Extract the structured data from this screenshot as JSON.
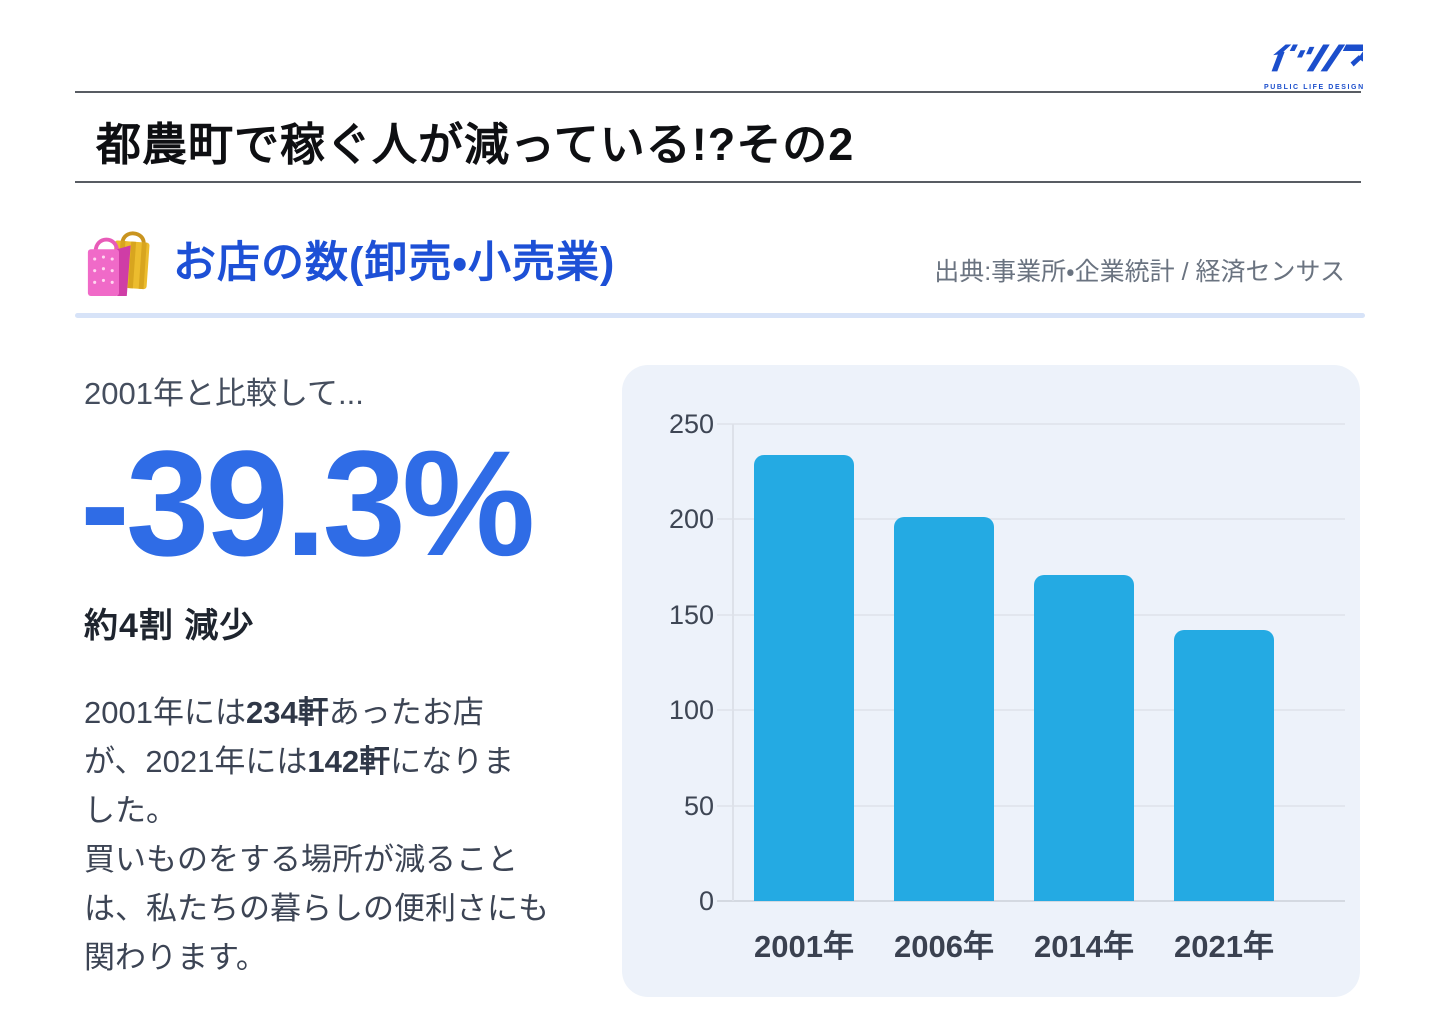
{
  "logo": {
    "name": "イツノマ",
    "tagline": "PUBLIC LIFE DESIGN"
  },
  "header": {
    "title": "都農町で稼ぐ人が減っている!?その2"
  },
  "section": {
    "icon": "shopping-bags",
    "title": "お店の数(卸売・小売業)",
    "source": "出典:事業所・企業統計 / 経済センサス"
  },
  "stats": {
    "compare_label": "2001年と比較して...",
    "big_number": "-39.3%",
    "sub_label": "約4割 減少",
    "description_lines": [
      [
        {
          "text": "2001年には"
        },
        {
          "text": "234軒",
          "bold": true
        },
        {
          "text": "あったお店"
        }
      ],
      [
        {
          "text": "が、2021年には"
        },
        {
          "text": "142軒",
          "bold": true
        },
        {
          "text": "になりま"
        }
      ],
      [
        {
          "text": "した。"
        }
      ],
      [
        {
          "text": "買いものをする場所が減ること"
        }
      ],
      [
        {
          "text": "は、私たちの暮らしの便利さにも"
        }
      ],
      [
        {
          "text": "関わります。"
        }
      ]
    ]
  },
  "chart_data": {
    "type": "bar",
    "categories": [
      "2001年",
      "2006年",
      "2014年",
      "2021年"
    ],
    "values": [
      234,
      201,
      171,
      142
    ],
    "title": "",
    "xlabel": "",
    "ylabel": "",
    "ylim": [
      0,
      250
    ],
    "ytick_step": 50,
    "grid": true,
    "legend": "none",
    "bar_color": "#24aae3",
    "panel_bg": "#edf2fa"
  },
  "colors": {
    "accent_blue": "#1d50d6",
    "number_blue": "#2f6ce6",
    "bar_cyan": "#24aae3",
    "panel_bg": "#edf2fa",
    "divider_blue": "#d7e3f8",
    "rule_gray": "#585c63",
    "text_dark": "#3c4454",
    "source_gray": "#6a7380"
  }
}
